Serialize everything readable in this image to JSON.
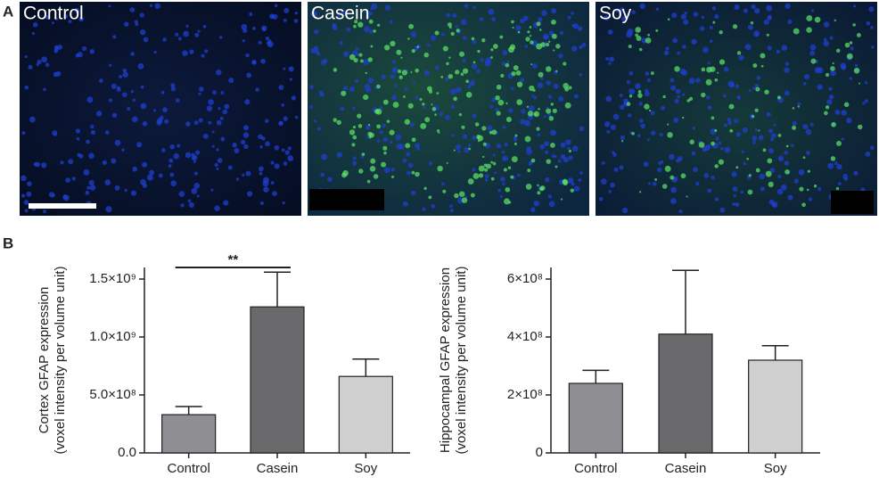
{
  "figure": {
    "panel_labels": [
      "A",
      "B"
    ],
    "image_labels": [
      "Control",
      "Casein",
      "Soy"
    ]
  },
  "chart_data": [
    {
      "type": "bar",
      "y_label": [
        "Cortex GFAP expression",
        "(voxel intensity per volume unit)"
      ],
      "categories": [
        "Control",
        "Casein",
        "Soy"
      ],
      "values": [
        330000000,
        1260000000,
        660000000
      ],
      "errors": [
        70000000,
        300000000,
        150000000
      ],
      "colors": [
        "#8e8e93",
        "#69696c",
        "#cfcfcf"
      ],
      "ylim": [
        0,
        1600000000
      ],
      "yticks": [
        {
          "value": 0,
          "label": "0.0"
        },
        {
          "value": 500000000,
          "label": "5.0×10⁸"
        },
        {
          "value": 1000000000,
          "label": "1.0×10⁹"
        },
        {
          "value": 1500000000,
          "label": "1.5×10⁹"
        }
      ],
      "annotation": "**"
    },
    {
      "type": "bar",
      "y_label": [
        "Hippocampal GFAP expression",
        "(voxel intensity per volume unit)"
      ],
      "categories": [
        "Control",
        "Casein",
        "Soy"
      ],
      "values": [
        240000000,
        410000000,
        320000000
      ],
      "errors": [
        45000000,
        220000000,
        50000000
      ],
      "colors": [
        "#8e8e93",
        "#69696c",
        "#cfcfcf"
      ],
      "ylim": [
        0,
        640000000
      ],
      "yticks": [
        0,
        {
          "value": 200000000,
          "label": "2×10⁸"
        },
        {
          "value": 400000000,
          "label": "4×10⁸"
        },
        {
          "value": 600000000,
          "label": "6×10⁸"
        }
      ]
    }
  ]
}
